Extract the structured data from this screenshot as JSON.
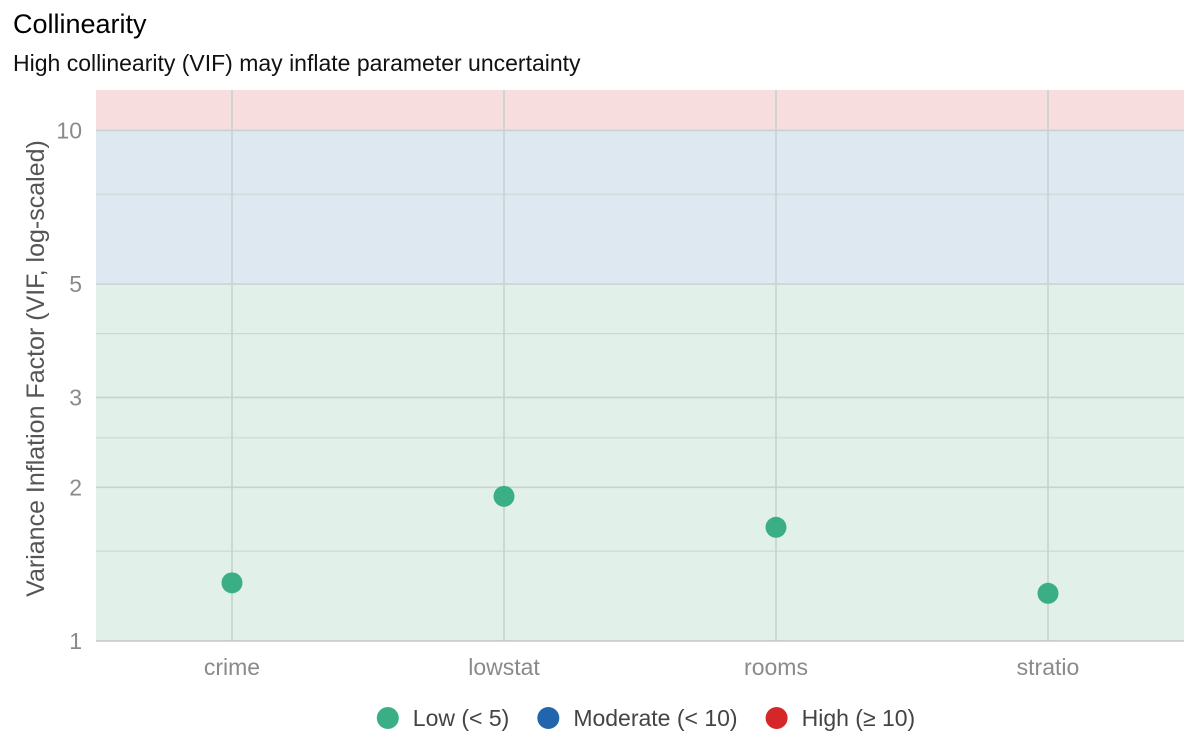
{
  "title": "Collinearity",
  "subtitle": "High collinearity (VIF) may inflate parameter uncertainty",
  "chart_data": {
    "type": "scatter",
    "title": "Collinearity",
    "subtitle": "High collinearity (VIF) may inflate parameter uncertainty",
    "xlabel": "",
    "ylabel": "Variance Inflation Factor (VIF, log-scaled)",
    "y_scale": "log",
    "ylim": [
      1,
      12
    ],
    "y_ticks": [
      1,
      2,
      3,
      5,
      10
    ],
    "y_tick_labels": [
      "1",
      "2",
      "3",
      "5",
      "10"
    ],
    "y_minor_ticks": [
      1.5,
      2.5,
      4,
      7.5
    ],
    "categories": [
      "crime",
      "lowstat",
      "rooms",
      "stratio"
    ],
    "series": [
      {
        "name": "Low (< 5)",
        "values": [
          1.3,
          1.92,
          1.67,
          1.24
        ]
      }
    ],
    "bands": [
      {
        "label": "Low (< 5)",
        "from": 1,
        "to": 5,
        "color": "#e1f1ea"
      },
      {
        "label": "Moderate (< 10)",
        "from": 5,
        "to": 10,
        "color": "#dde8f1"
      },
      {
        "label": "High (≥ 10)",
        "from": 10,
        "to": 12,
        "color": "#f8dddf"
      }
    ],
    "legend": [
      {
        "label": "Low (< 5)",
        "color": "#3aaf85"
      },
      {
        "label": "Moderate (< 10)",
        "color": "#2166ac"
      },
      {
        "label": "High (≥ 10)",
        "color": "#d62728"
      }
    ],
    "legend_position": "bottom",
    "grid": true,
    "point_color": "#3aaf85"
  }
}
